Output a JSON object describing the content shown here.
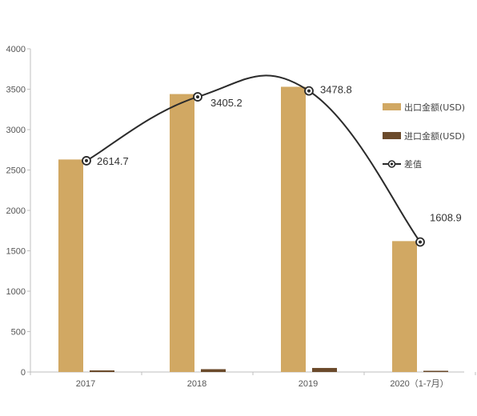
{
  "chart_data": {
    "type": "bar",
    "categories": [
      "2017",
      "2018",
      "2019",
      "2020（1-7月）"
    ],
    "series": [
      {
        "name": "出口金额(USD)",
        "type": "bar",
        "color": "#d1a863",
        "values": [
          2630,
          3440,
          3530,
          1620
        ]
      },
      {
        "name": "进口金额(USD)",
        "type": "bar",
        "color": "#6b4a2b",
        "values": [
          20,
          35,
          50,
          15
        ]
      },
      {
        "name": "差值",
        "type": "line",
        "color": "#2b2b2b",
        "values": [
          2614.7,
          3405.2,
          3478.8,
          1608.9
        ],
        "labels": [
          "2614.7",
          "3405.2",
          "3478.8",
          "1608.9"
        ]
      }
    ],
    "ylim": [
      0,
      4000
    ],
    "yticks": [
      "0",
      "500",
      "1000",
      "1500",
      "2000",
      "2500",
      "3000",
      "3500",
      "4000"
    ],
    "grid": false,
    "legend": "right"
  }
}
